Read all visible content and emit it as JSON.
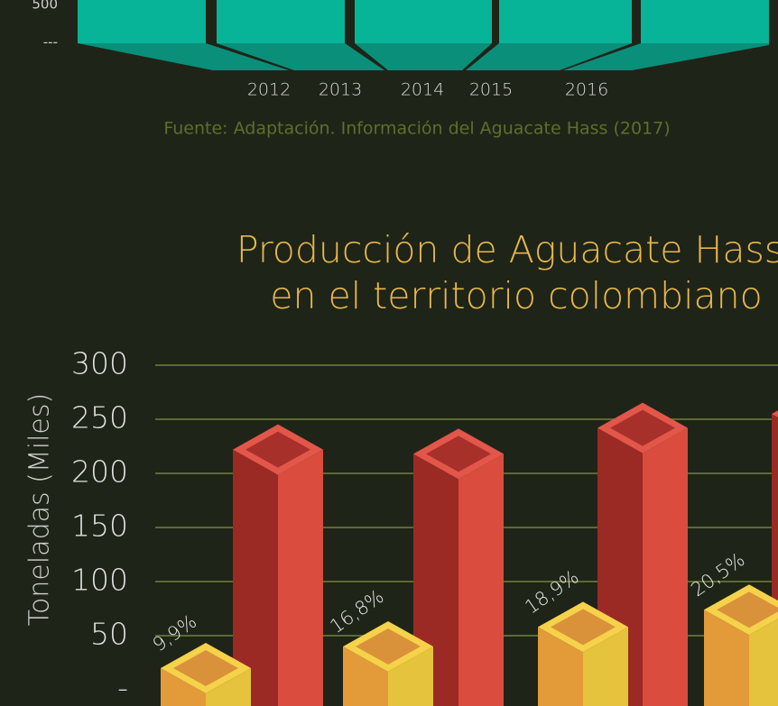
{
  "chart_data": [
    {
      "type": "bar",
      "categories": [
        "2012",
        "2013",
        "2014",
        "2015",
        "2016"
      ],
      "yticks": [
        {
          "value": 0,
          "label": "---"
        },
        500
      ],
      "color": "#08b497",
      "source": "Fuente: Adaptación. Información del Aguacate Hass (2017)"
    },
    {
      "type": "bar3d",
      "title": [
        "Producción de Aguacate Hass",
        "en el territorio colombiano"
      ],
      "y_label": "Toneladas (Miles)",
      "ylim": [
        0,
        300
      ],
      "yticks": [
        {
          "value": 0,
          "label": "-"
        },
        50,
        100,
        150,
        200,
        250,
        300
      ],
      "grid": true,
      "series": [
        {
          "color": "#d94c3e",
          "values": [
            222,
            218,
            242,
            255
          ]
        },
        {
          "color": "#e5c33c",
          "values": [
            20,
            40,
            58,
            74
          ]
        }
      ],
      "annotations": [
        "9,9%",
        "16,8%",
        "18,9%",
        "20,5%"
      ]
    }
  ]
}
